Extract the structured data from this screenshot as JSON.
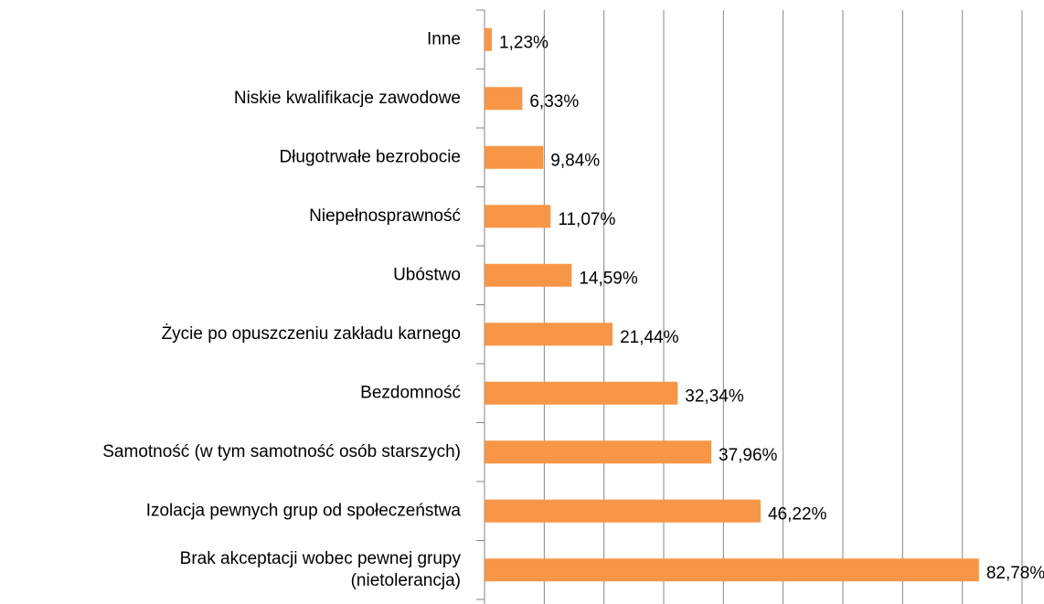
{
  "chart_data": {
    "type": "hbar",
    "categories": [
      "Inne",
      "Niskie kwalifikacje zawodowe",
      "Długotrwałe bezrobocie",
      "Niepełnosprawność",
      "Ubóstwo",
      "Życie po opuszczeniu zakładu karnego",
      "Bezdomność",
      "Samotność (w tym samotność osób starszych)",
      "Izolacja pewnych grup od społeczeństwa",
      "Brak akceptacji wobec pewnej grupy\n(nietolerancja)"
    ],
    "values": [
      1.23,
      6.33,
      9.84,
      11.07,
      14.59,
      21.44,
      32.34,
      37.96,
      46.22,
      82.78
    ],
    "value_labels": [
      "1,23%",
      "6,33%",
      "9,84%",
      "11,07%",
      "14,59%",
      "21,44%",
      "32,34%",
      "37,96%",
      "46,22%",
      "82,78%"
    ],
    "color": "#f79646",
    "xlim": [
      0,
      90
    ],
    "xticks": [
      0,
      10,
      20,
      30,
      40,
      50,
      60,
      70,
      80,
      90
    ],
    "grid": true
  }
}
